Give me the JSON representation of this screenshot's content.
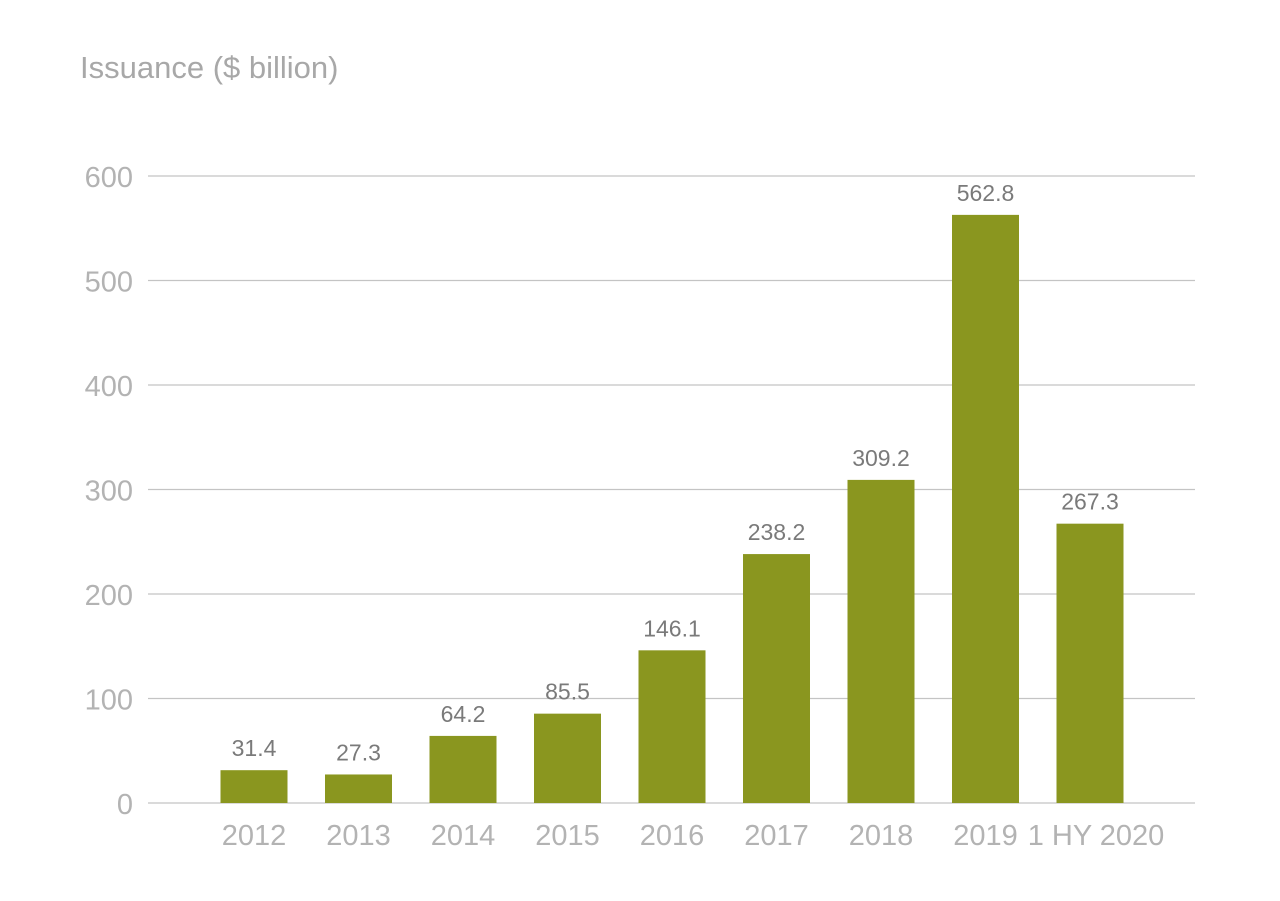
{
  "chart_data": {
    "type": "bar",
    "ylabel": "Issuance ($ billion)",
    "categories": [
      "2012",
      "2013",
      "2014",
      "2015",
      "2016",
      "2017",
      "2018",
      "2019",
      "1 HY 2020"
    ],
    "values": [
      31.4,
      27.3,
      64.2,
      85.5,
      146.1,
      238.2,
      309.2,
      562.8,
      267.3
    ],
    "data_labels": [
      "31.4",
      "27.3",
      "64.2",
      "85.5",
      "146.1",
      "238.2",
      "309.2",
      "562.8",
      "267.3"
    ],
    "y_ticks": [
      0,
      100,
      200,
      300,
      400,
      500,
      600
    ],
    "y_tick_labels": [
      "0",
      "100",
      "200",
      "300",
      "400",
      "500",
      "600"
    ],
    "ylim": [
      0,
      600
    ],
    "grid": true,
    "legend": "none"
  },
  "colors": {
    "bar": "#8a961f",
    "grid": "#c4c4c4",
    "axis_text": "#b3b3b3",
    "label_text": "#7a7a7a",
    "title_text": "#a8a8a8"
  }
}
